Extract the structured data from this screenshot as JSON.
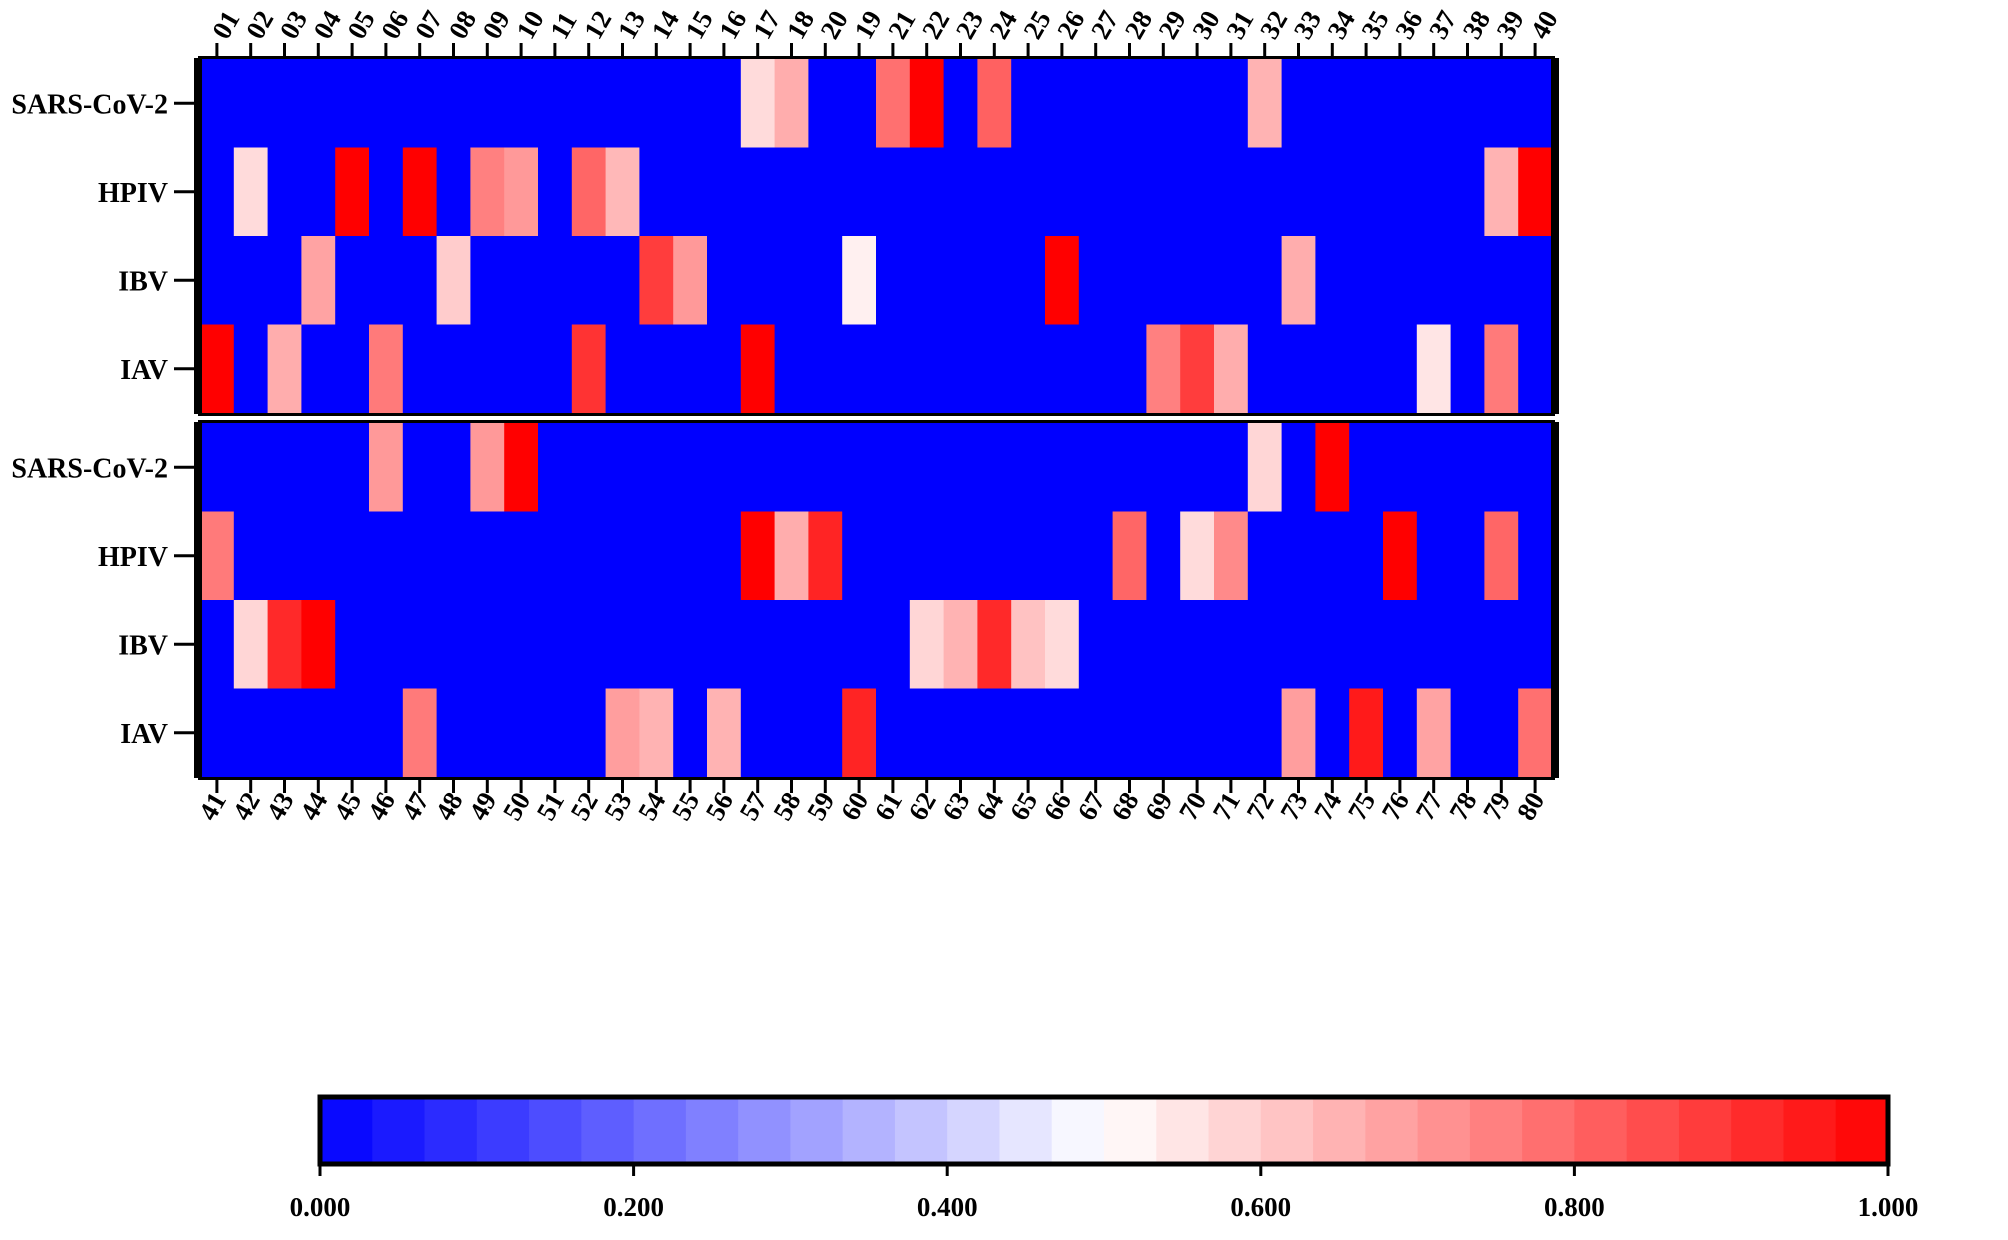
{
  "chart_data": {
    "type": "heatmap",
    "title": "",
    "xlabel": "",
    "ylabel": "",
    "color_scale": {
      "min": 0.0,
      "max": 1.0,
      "low_color": "#0000ff",
      "mid_color": "#ffffff",
      "high_color": "#ff0000",
      "tick_values": [
        0.0,
        0.2,
        0.4,
        0.6,
        0.8,
        1.0
      ],
      "tick_labels": [
        "0.000",
        "0.200",
        "0.400",
        "0.600",
        "0.800",
        "1.000"
      ]
    },
    "panels": [
      {
        "rows": [
          "SARS-CoV-2",
          "HPIV",
          "IBV",
          "IAV"
        ],
        "columns": [
          "01",
          "02",
          "03",
          "04",
          "05",
          "06",
          "07",
          "08",
          "09",
          "10",
          "11",
          "12",
          "13",
          "14",
          "15",
          "16",
          "17",
          "18",
          "20",
          "19",
          "21",
          "22",
          "23",
          "24",
          "25",
          "26",
          "27",
          "28",
          "29",
          "30",
          "31",
          "32",
          "33",
          "34",
          "35",
          "36",
          "37",
          "38",
          "39",
          "40"
        ],
        "column_label_position": "top",
        "values": [
          [
            0,
            0,
            0,
            0,
            0,
            0,
            0,
            0,
            0,
            0,
            0,
            0,
            0,
            0,
            0,
            0,
            0.57,
            0.66,
            0,
            0,
            0.78,
            1.0,
            0,
            0.81,
            0,
            0,
            0,
            0,
            0,
            0,
            0,
            0.65,
            0,
            0,
            0,
            0,
            0,
            0,
            0,
            0
          ],
          [
            0,
            0.57,
            0,
            0,
            1.0,
            0,
            1.0,
            0,
            0.75,
            0.7,
            0,
            0.8,
            0.64,
            0,
            0,
            0,
            0,
            0,
            0,
            0,
            0,
            0,
            0,
            0,
            0,
            0,
            0,
            0,
            0,
            0,
            0,
            0,
            0,
            0,
            0,
            0,
            0,
            0,
            0.65,
            1.0
          ],
          [
            0,
            0,
            0,
            0.68,
            0,
            0,
            0,
            0.6,
            0,
            0,
            0,
            0,
            0,
            0.88,
            0.7,
            0,
            0,
            0,
            0,
            0.53,
            0,
            0,
            0,
            0,
            0,
            1.0,
            0,
            0,
            0,
            0,
            0,
            0,
            0.66,
            0,
            0,
            0,
            0,
            0,
            0,
            0
          ],
          [
            1.0,
            0,
            0.66,
            0,
            0,
            0.76,
            0,
            0,
            0,
            0,
            0,
            0.9,
            0,
            0,
            0,
            0,
            1.0,
            0,
            0,
            0,
            0,
            0,
            0,
            0,
            0,
            0,
            0,
            0,
            0.75,
            0.88,
            0.66,
            0,
            0,
            0,
            0,
            0,
            0.55,
            0,
            0.76,
            0
          ]
        ]
      },
      {
        "rows": [
          "SARS-CoV-2",
          "HPIV",
          "IBV",
          "IAV"
        ],
        "columns": [
          "41",
          "42",
          "43",
          "44",
          "45",
          "46",
          "47",
          "48",
          "49",
          "50",
          "51",
          "52",
          "53",
          "54",
          "55",
          "56",
          "57",
          "58",
          "59",
          "60",
          "61",
          "62",
          "63",
          "64",
          "65",
          "66",
          "67",
          "68",
          "69",
          "70",
          "71",
          "72",
          "73",
          "74",
          "75",
          "76",
          "77",
          "78",
          "79",
          "80"
        ],
        "column_label_position": "bottom",
        "values": [
          [
            0,
            0,
            0,
            0,
            0,
            0.7,
            0,
            0,
            0.7,
            1.0,
            0,
            0,
            0,
            0,
            0,
            0,
            0,
            0,
            0,
            0,
            0,
            0,
            0,
            0,
            0,
            0,
            0,
            0,
            0,
            0,
            0,
            0.58,
            0,
            1.0,
            0,
            0,
            0,
            0,
            0,
            0
          ],
          [
            0.76,
            0,
            0,
            0,
            0,
            0,
            0,
            0,
            0,
            0,
            0,
            0,
            0,
            0,
            0,
            0,
            1.0,
            0.66,
            0.93,
            0,
            0,
            0,
            0,
            0,
            0,
            0,
            0,
            0.8,
            0,
            0.57,
            0.73,
            0,
            0,
            0,
            0,
            1.0,
            0,
            0,
            0.8,
            0
          ],
          [
            0,
            0.58,
            0.92,
            1.0,
            0,
            0,
            0,
            0,
            0,
            0,
            0,
            0,
            0,
            0,
            0,
            0,
            0,
            0,
            0,
            0,
            0,
            0.58,
            0.65,
            0.92,
            0.62,
            0.57,
            0,
            0,
            0,
            0,
            0,
            0,
            0,
            0,
            0,
            0,
            0,
            0,
            0,
            0
          ],
          [
            0,
            0,
            0,
            0,
            0,
            0,
            0.76,
            0,
            0,
            0,
            0,
            0,
            0.69,
            0.65,
            0,
            0.65,
            0,
            0,
            0,
            0.93,
            0,
            0,
            0,
            0,
            0,
            0,
            0,
            0,
            0,
            0,
            0,
            0,
            0.69,
            0,
            0.95,
            0,
            0.68,
            0,
            0,
            0.78
          ]
        ]
      }
    ]
  }
}
